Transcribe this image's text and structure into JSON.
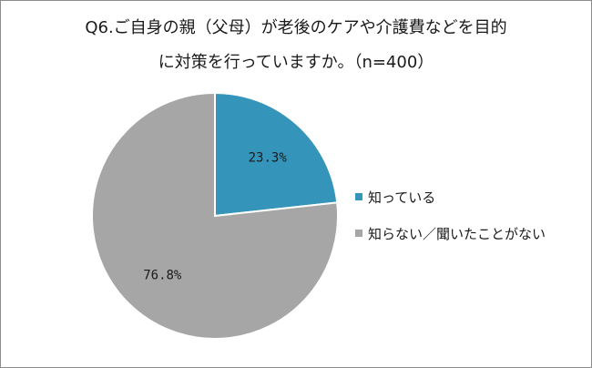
{
  "chart_data": {
    "type": "pie",
    "title_lines": [
      "Q6.ご自身の親（父母）が老後のケアや介護費などを目的",
      "に対策を行っていますか。（n=400）"
    ],
    "slices": [
      {
        "name": "知っている",
        "value": 23.3,
        "label": "23.3%",
        "color": "#3494ba"
      },
      {
        "name": "知らない／聞いたことがない",
        "value": 76.8,
        "label": "76.8%",
        "color": "#a6a6a6"
      }
    ],
    "start_angle": "12-o'clock",
    "direction": "clockwise",
    "legend_position": "right"
  }
}
